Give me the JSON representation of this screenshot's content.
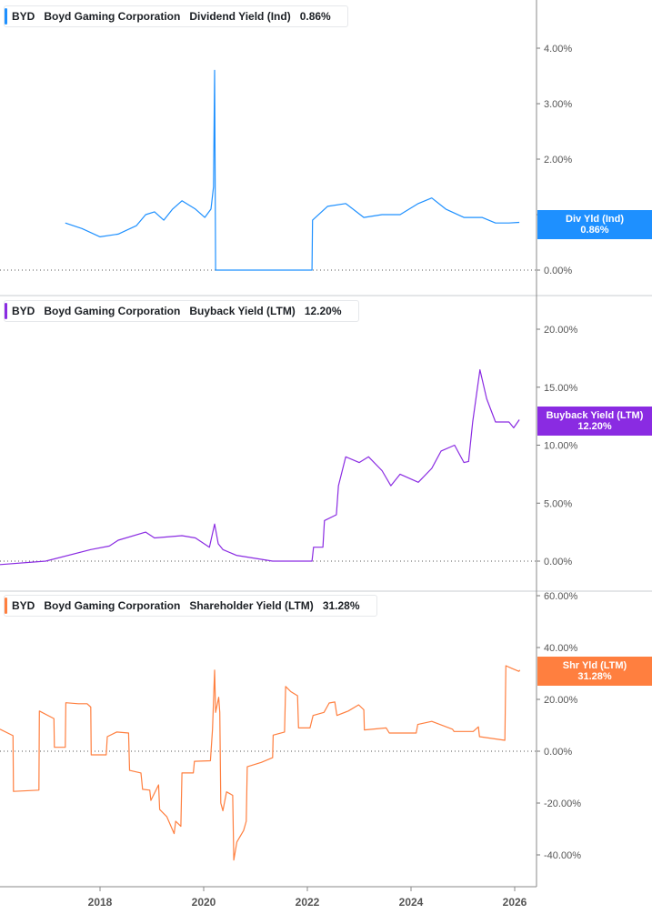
{
  "chart_data": [
    {
      "type": "line",
      "legend": {
        "ticker": "BYD",
        "company": "Boyd Gaming Corporation",
        "metric": "Dividend Yield (Ind)",
        "value": "0.86%"
      },
      "tag": {
        "label": "Div Yld (Ind)",
        "value": "0.86%"
      },
      "color": "#1e90ff",
      "ylim": [
        0,
        4.8
      ],
      "yticks": [
        0,
        1,
        2,
        3,
        4
      ],
      "ytick_labels": [
        "0.00%",
        "1.00%",
        "2.00%",
        "3.00%",
        "4.00%"
      ],
      "x": [
        2017.33,
        2017.65,
        2018.0,
        2018.35,
        2018.7,
        2018.88,
        2019.05,
        2019.23,
        2019.4,
        2019.58,
        2019.84,
        2020.02,
        2020.14,
        2020.19,
        2020.21,
        2020.23,
        2022.09,
        2022.1,
        2022.39,
        2022.74,
        2023.09,
        2023.44,
        2023.79,
        2024.14,
        2024.4,
        2024.67,
        2025.02,
        2025.37,
        2025.63,
        2025.89,
        2026.09
      ],
      "y": [
        0.85,
        0.75,
        0.6,
        0.65,
        0.8,
        1.0,
        1.05,
        0.9,
        1.1,
        1.25,
        1.1,
        0.95,
        1.1,
        1.5,
        3.6,
        0,
        0,
        0.9,
        1.15,
        1.2,
        0.95,
        1.0,
        1.0,
        1.2,
        1.3,
        1.1,
        0.95,
        0.95,
        0.85,
        0.85,
        0.86
      ]
    },
    {
      "type": "line",
      "legend": {
        "ticker": "BYD",
        "company": "Boyd Gaming Corporation",
        "metric": "Buyback Yield (LTM)",
        "value": "12.20%"
      },
      "tag": {
        "label": "Buyback Yield (LTM)",
        "value": "12.20%"
      },
      "color": "#8a2be2",
      "ylim": [
        -1,
        24
      ],
      "yticks": [
        0,
        5,
        10,
        15,
        20
      ],
      "ytick_labels": [
        "0.00%",
        "5.00%",
        "10.00%",
        "15.00%",
        "20.00%"
      ],
      "x": [
        2016.07,
        2016.95,
        2017.82,
        2018.18,
        2018.35,
        2018.88,
        2019.05,
        2019.58,
        2019.84,
        2020.11,
        2020.21,
        2020.28,
        2020.37,
        2020.63,
        2021.33,
        2022.09,
        2022.12,
        2022.3,
        2022.33,
        2022.56,
        2022.6,
        2022.74,
        2023.0,
        2023.18,
        2023.44,
        2023.61,
        2023.79,
        2024.14,
        2024.4,
        2024.58,
        2024.84,
        2025.02,
        2025.11,
        2025.19,
        2025.33,
        2025.46,
        2025.63,
        2025.89,
        2025.98,
        2026.09
      ],
      "y": [
        -0.3,
        0,
        1,
        1.3,
        1.8,
        2.5,
        2,
        2.2,
        2,
        1.2,
        3.2,
        1.5,
        1,
        0.5,
        0,
        0,
        1.2,
        1.2,
        3.5,
        4,
        6.5,
        9,
        8.5,
        9,
        7.8,
        6.5,
        7.5,
        6.8,
        8,
        9.5,
        10,
        8.5,
        8.6,
        12,
        16.5,
        14,
        12,
        12,
        11.5,
        12.2
      ]
    },
    {
      "type": "line",
      "legend": {
        "ticker": "BYD",
        "company": "Boyd Gaming Corporation",
        "metric": "Shareholder Yield (LTM)",
        "value": "31.28%"
      },
      "tag": {
        "label": "Shr Yld (LTM)",
        "value": "31.28%"
      },
      "color": "#ff7f3f",
      "ylim": [
        -50,
        62
      ],
      "yticks": [
        -40,
        -20,
        0,
        20,
        40,
        60
      ],
      "ytick_labels": [
        "-40.00%",
        "-20.00%",
        "0.00%",
        "20.00%",
        "40.00%",
        "60.00%"
      ],
      "x": [
        2016.07,
        2016.32,
        2016.33,
        2016.82,
        2016.83,
        2017.11,
        2017.12,
        2017.33,
        2017.34,
        2017.58,
        2017.75,
        2017.82,
        2017.83,
        2018.12,
        2018.14,
        2018.32,
        2018.55,
        2018.57,
        2018.79,
        2018.82,
        2018.96,
        2018.98,
        2019.13,
        2019.15,
        2019.29,
        2019.43,
        2019.46,
        2019.56,
        2019.58,
        2019.8,
        2019.82,
        2020.13,
        2020.17,
        2020.21,
        2020.23,
        2020.29,
        2020.31,
        2020.33,
        2020.37,
        2020.44,
        2020.56,
        2020.58,
        2020.64,
        2020.77,
        2020.82,
        2020.84,
        2021.11,
        2021.33,
        2021.34,
        2021.56,
        2021.58,
        2021.68,
        2021.81,
        2021.83,
        2022.05,
        2022.11,
        2022.32,
        2022.42,
        2022.53,
        2022.57,
        2022.79,
        2022.99,
        2023.09,
        2023.1,
        2023.52,
        2023.58,
        2024.1,
        2024.13,
        2024.4,
        2024.8,
        2024.83,
        2025.2,
        2025.3,
        2025.32,
        2025.81,
        2025.83,
        2025.94,
        2026.08,
        2026.1
      ],
      "y": [
        8.5,
        6,
        -15.5,
        -15,
        15.5,
        12.6,
        1.5,
        1.5,
        18.7,
        18.3,
        18.3,
        17,
        -1.4,
        -1.4,
        5.6,
        7.4,
        7,
        -7.4,
        -8.4,
        -14.7,
        -15,
        -19,
        -13,
        -22.5,
        -25.3,
        -31.8,
        -27,
        -29,
        -8.4,
        -8.4,
        -3.9,
        -3.7,
        8.5,
        31.3,
        15,
        20.8,
        15,
        -20,
        -23,
        -15.7,
        -17,
        -42,
        -35,
        -30.6,
        -27,
        -6,
        -4.3,
        -2.5,
        6.2,
        7.4,
        25,
        23,
        21.4,
        9,
        9,
        13.8,
        15,
        18.6,
        19,
        13.8,
        15.5,
        17.9,
        16,
        8.2,
        9,
        7,
        7,
        10.3,
        11.5,
        8.5,
        7.6,
        7.6,
        9.4,
        5.6,
        4.2,
        33,
        32,
        30.8,
        31.3
      ]
    }
  ],
  "xaxis": {
    "xlim": [
      2016.07,
      2026.45
    ],
    "ticks": [
      2018,
      2020,
      2022,
      2024,
      2026
    ],
    "tick_labels": [
      "2018",
      "2020",
      "2022",
      "2024",
      "2026"
    ]
  }
}
